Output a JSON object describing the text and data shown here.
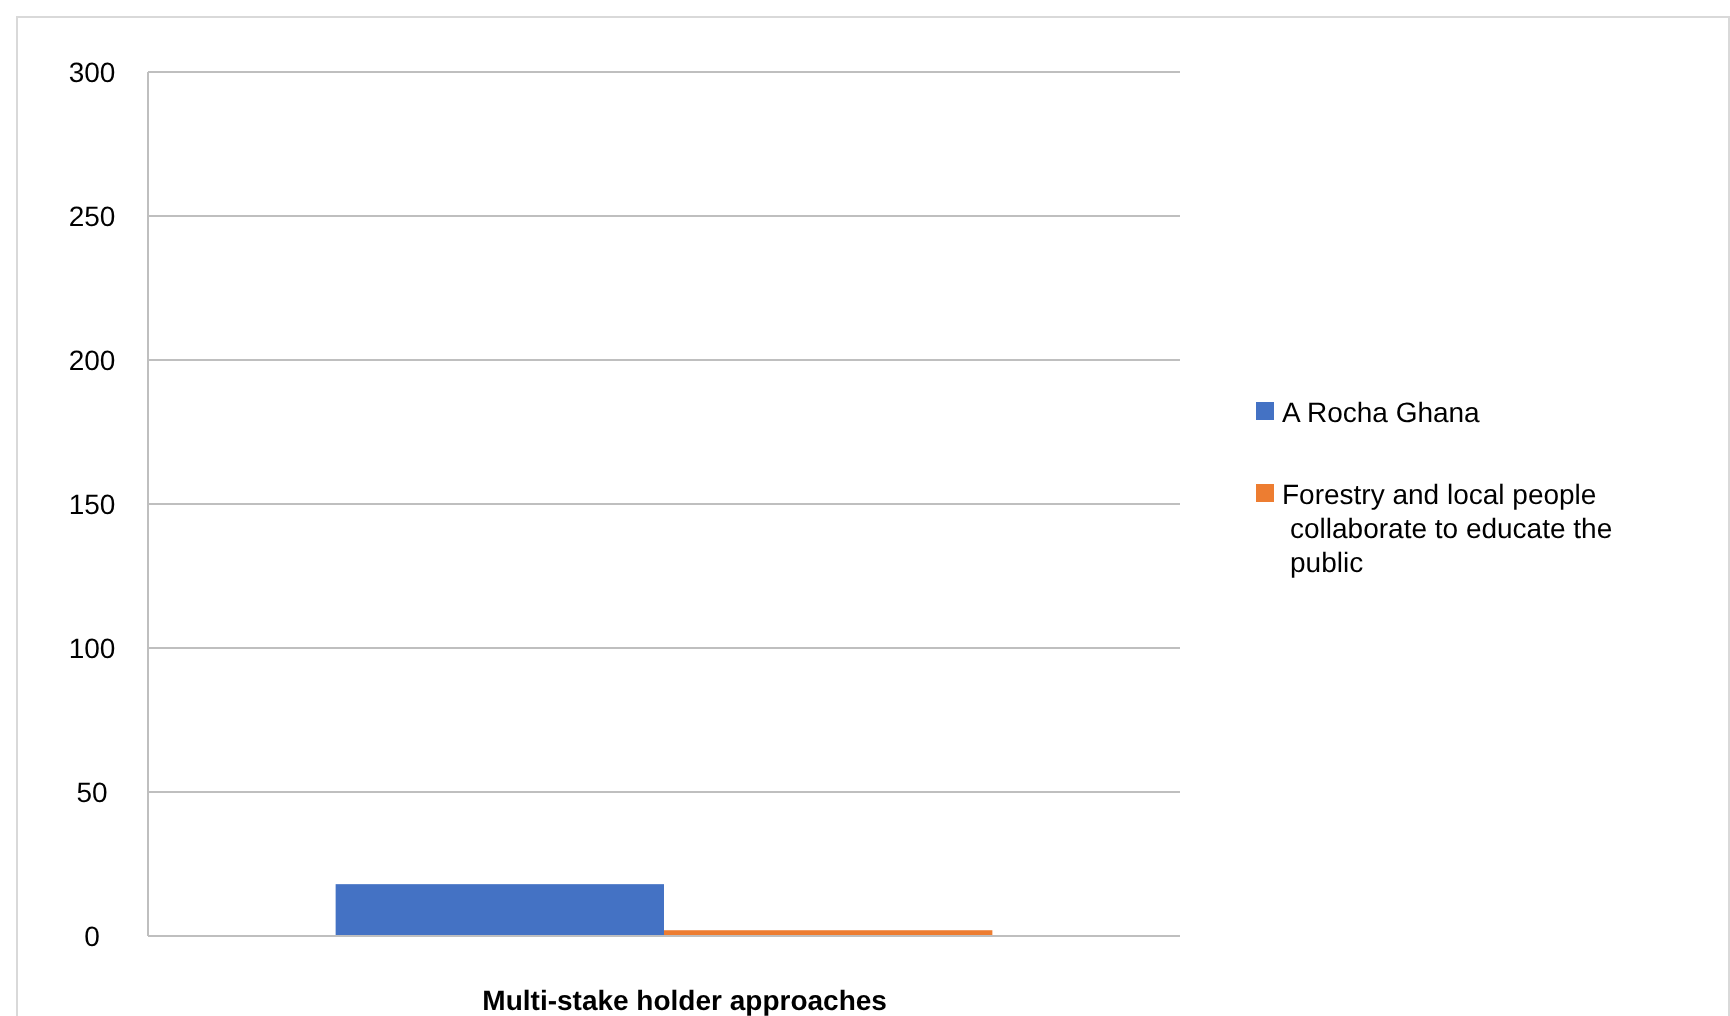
{
  "chart_data": {
    "type": "bar",
    "xlabel": "Multi-stake holder approaches",
    "categories": [
      null
    ],
    "series": [
      {
        "name": "A Rocha Ghana",
        "color": "#4472c4",
        "values": [
          18
        ]
      },
      {
        "name": " Forestry and local people collaborate to educate the public",
        "color": "#ed7d31",
        "values": [
          2
        ]
      }
    ],
    "ylim": [
      0,
      300
    ],
    "yticks": [
      0,
      50,
      100,
      150,
      200,
      250,
      300
    ],
    "grid": "y",
    "legend": "right"
  }
}
